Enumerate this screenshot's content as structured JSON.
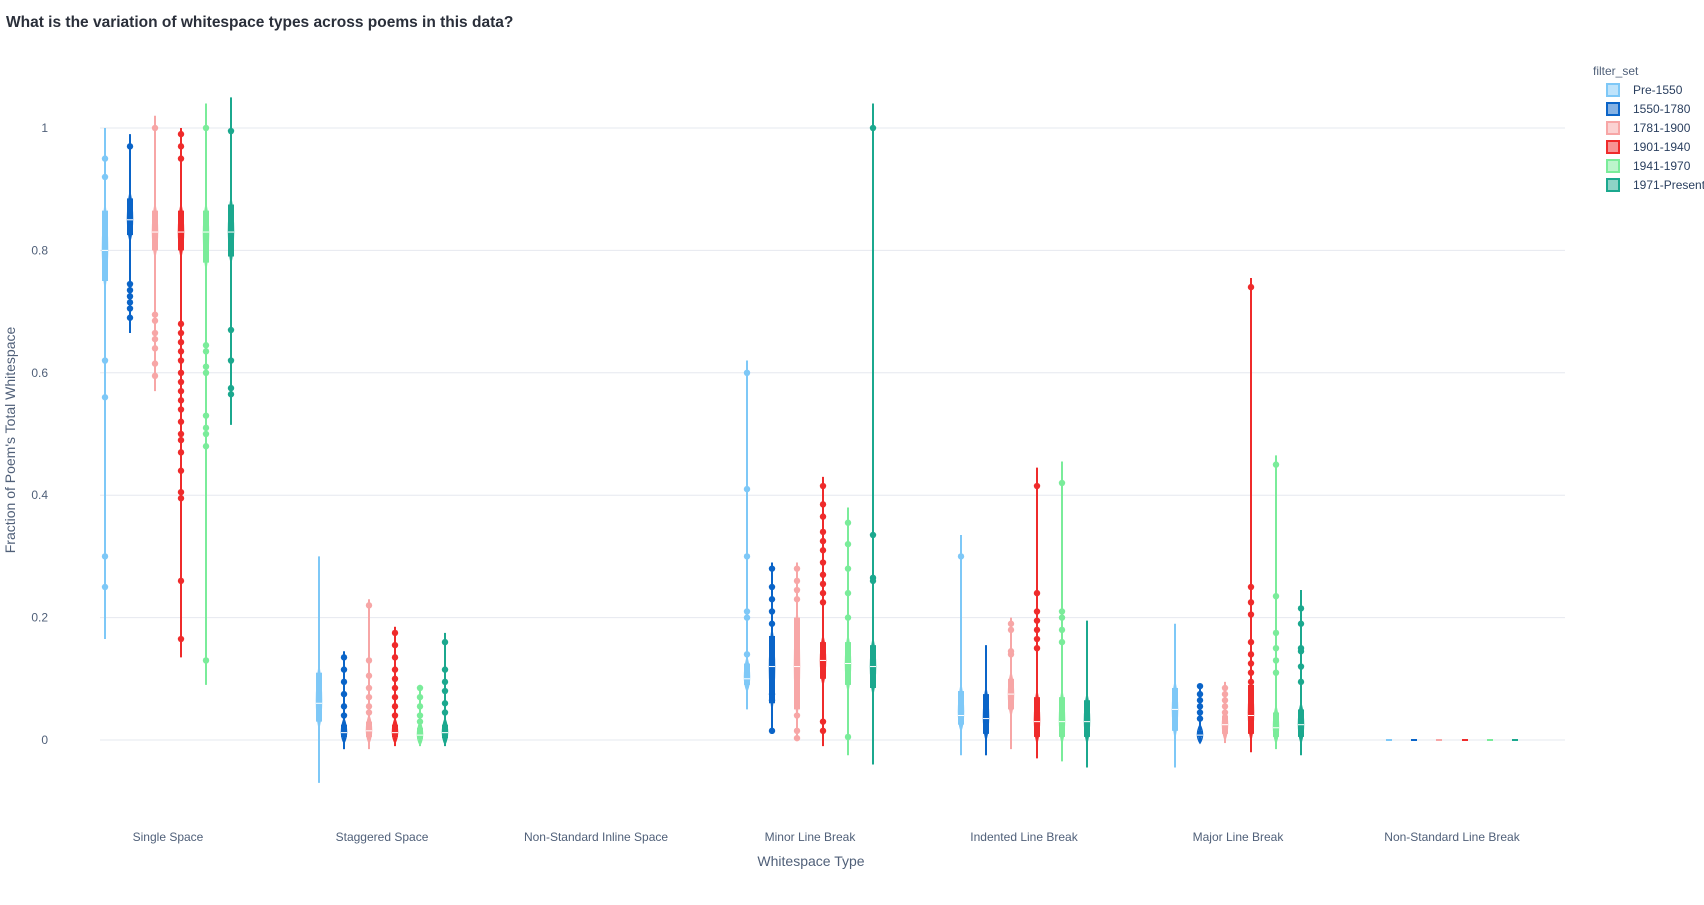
{
  "chart_data": {
    "type": "violin",
    "title": "What is the variation of whitespace types across poems in this data?",
    "xlabel": "Whitespace Type",
    "ylabel": "Fraction of Poem's Total Whitespace",
    "ylim": [
      -0.12,
      1.08
    ],
    "yticks": [
      0,
      0.2,
      0.4,
      0.6,
      0.8,
      1
    ],
    "ytick_labels": [
      "0",
      "0.2",
      "0.4",
      "0.6",
      "0.8",
      "1"
    ],
    "grid": true,
    "legend": {
      "title": "filter_set",
      "position": "top-right"
    },
    "categories": [
      "Single Space",
      "Staggered Space",
      "Non-Standard Inline Space",
      "Minor Line Break",
      "Indented Line Break",
      "Major Line Break",
      "Non-Standard Line Break"
    ],
    "series": [
      {
        "name": "Pre-1550",
        "color": "#7ec8f7",
        "stats": [
          {
            "min": 0.165,
            "max": 1.0,
            "q1": 0.75,
            "q3": 0.865,
            "median": 0.8,
            "points": [
              0.56,
              0.3,
              0.25,
              0.62,
              0.92,
              0.95
            ]
          },
          {
            "min": -0.07,
            "max": 0.3,
            "q1": 0.03,
            "q3": 0.11,
            "median": 0.06,
            "points": []
          },
          null,
          {
            "min": 0.05,
            "max": 0.62,
            "q1": 0.09,
            "q3": 0.125,
            "median": 0.1,
            "points": [
              0.6,
              0.41,
              0.3,
              0.21,
              0.2,
              0.14
            ]
          },
          {
            "min": -0.025,
            "max": 0.335,
            "q1": 0.025,
            "q3": 0.08,
            "median": 0.04,
            "points": [
              0.3
            ]
          },
          {
            "min": -0.045,
            "max": 0.19,
            "q1": 0.015,
            "q3": 0.085,
            "median": 0.05,
            "points": []
          },
          {
            "min": 0,
            "max": 0,
            "q1": 0,
            "q3": 0,
            "median": 0,
            "points": []
          }
        ]
      },
      {
        "name": "1550-1780",
        "color": "#0a64c8",
        "stats": [
          {
            "min": 0.665,
            "max": 0.99,
            "q1": 0.825,
            "q3": 0.885,
            "median": 0.85,
            "points": [
              0.97,
              0.745,
              0.735,
              0.725,
              0.715,
              0.705,
              0.69
            ]
          },
          {
            "min": -0.015,
            "max": 0.145,
            "q1": 0.005,
            "q3": 0.025,
            "median": 0.012,
            "points": [
              0.135,
              0.115,
              0.095,
              0.075,
              0.055,
              0.04
            ]
          },
          null,
          {
            "min": 0.01,
            "max": 0.29,
            "q1": 0.06,
            "q3": 0.17,
            "median": 0.12,
            "points": [
              0.28,
              0.25,
              0.23,
              0.21,
              0.19,
              0.075,
              0.065,
              0.015
            ]
          },
          {
            "min": -0.025,
            "max": 0.155,
            "q1": 0.01,
            "q3": 0.075,
            "median": 0.035,
            "points": []
          },
          {
            "min": -0.005,
            "max": 0.09,
            "q1": 0.005,
            "q3": 0.015,
            "median": 0.008,
            "points": [
              0.088,
              0.075,
              0.065,
              0.055,
              0.045,
              0.035
            ]
          },
          {
            "min": 0,
            "max": 0,
            "q1": 0,
            "q3": 0,
            "median": 0,
            "points": []
          }
        ]
      },
      {
        "name": "1781-1900",
        "color": "#f7a6a6",
        "stats": [
          {
            "min": 0.57,
            "max": 1.02,
            "q1": 0.8,
            "q3": 0.865,
            "median": 0.83,
            "points": [
              1.0,
              0.695,
              0.685,
              0.665,
              0.655,
              0.64,
              0.615,
              0.595
            ]
          },
          {
            "min": -0.015,
            "max": 0.23,
            "q1": 0.005,
            "q3": 0.03,
            "median": 0.015,
            "points": [
              0.22,
              0.13,
              0.105,
              0.085,
              0.07,
              0.055,
              0.045
            ]
          },
          null,
          {
            "min": 0.0,
            "max": 0.29,
            "q1": 0.05,
            "q3": 0.2,
            "median": 0.12,
            "points": [
              0.28,
              0.26,
              0.245,
              0.23,
              0.04,
              0.015,
              0.003
            ]
          },
          {
            "min": -0.015,
            "max": 0.2,
            "q1": 0.05,
            "q3": 0.1,
            "median": 0.075,
            "points": [
              0.19,
              0.18,
              0.145,
              0.14
            ]
          },
          {
            "min": -0.005,
            "max": 0.095,
            "q1": 0.01,
            "q3": 0.04,
            "median": 0.025,
            "points": [
              0.085,
              0.075,
              0.065,
              0.055,
              0.045
            ]
          },
          {
            "min": 0,
            "max": 0,
            "q1": 0,
            "q3": 0,
            "median": 0,
            "points": []
          }
        ]
      },
      {
        "name": "1901-1940",
        "color": "#ef2b2b",
        "stats": [
          {
            "min": 0.135,
            "max": 1.0,
            "q1": 0.8,
            "q3": 0.865,
            "median": 0.83,
            "points": [
              0.99,
              0.97,
              0.95,
              0.68,
              0.665,
              0.65,
              0.635,
              0.62,
              0.6,
              0.585,
              0.57,
              0.555,
              0.54,
              0.52,
              0.5,
              0.49,
              0.47,
              0.44,
              0.405,
              0.395,
              0.26,
              0.165
            ]
          },
          {
            "min": -0.01,
            "max": 0.185,
            "q1": 0.005,
            "q3": 0.025,
            "median": 0.012,
            "points": [
              0.175,
              0.155,
              0.135,
              0.115,
              0.1,
              0.085,
              0.07,
              0.055,
              0.04
            ]
          },
          null,
          {
            "min": -0.01,
            "max": 0.43,
            "q1": 0.1,
            "q3": 0.16,
            "median": 0.13,
            "points": [
              0.415,
              0.385,
              0.365,
              0.34,
              0.325,
              0.31,
              0.29,
              0.27,
              0.255,
              0.24,
              0.225,
              0.03,
              0.015
            ]
          },
          {
            "min": -0.03,
            "max": 0.445,
            "q1": 0.005,
            "q3": 0.07,
            "median": 0.03,
            "points": [
              0.415,
              0.24,
              0.21,
              0.195,
              0.18,
              0.165,
              0.15
            ]
          },
          {
            "min": -0.02,
            "max": 0.755,
            "q1": 0.01,
            "q3": 0.09,
            "median": 0.04,
            "points": [
              0.74,
              0.25,
              0.225,
              0.205,
              0.16,
              0.14,
              0.125,
              0.11,
              0.095
            ]
          },
          {
            "min": 0,
            "max": 0,
            "q1": 0,
            "q3": 0,
            "median": 0,
            "points": []
          }
        ]
      },
      {
        "name": "1941-1970",
        "color": "#7aec9a",
        "stats": [
          {
            "min": 0.09,
            "max": 1.04,
            "q1": 0.78,
            "q3": 0.865,
            "median": 0.83,
            "points": [
              1.0,
              0.645,
              0.635,
              0.61,
              0.6,
              0.53,
              0.51,
              0.5,
              0.48,
              0.13
            ]
          },
          {
            "min": -0.01,
            "max": 0.09,
            "q1": 0.002,
            "q3": 0.02,
            "median": 0.008,
            "points": [
              0.085,
              0.07,
              0.055,
              0.04,
              0.03
            ]
          },
          null,
          {
            "min": -0.025,
            "max": 0.38,
            "q1": 0.09,
            "q3": 0.16,
            "median": 0.125,
            "points": [
              0.355,
              0.32,
              0.28,
              0.24,
              0.2,
              0.005
            ]
          },
          {
            "min": -0.035,
            "max": 0.455,
            "q1": 0.005,
            "q3": 0.07,
            "median": 0.03,
            "points": [
              0.42,
              0.21,
              0.2,
              0.18,
              0.16
            ]
          },
          {
            "min": -0.015,
            "max": 0.465,
            "q1": 0.005,
            "q3": 0.045,
            "median": 0.02,
            "points": [
              0.45,
              0.235,
              0.175,
              0.15,
              0.13,
              0.11
            ]
          },
          {
            "min": 0,
            "max": 0,
            "q1": 0,
            "q3": 0,
            "median": 0,
            "points": []
          }
        ]
      },
      {
        "name": "1971-Present",
        "color": "#1ba88e",
        "stats": [
          {
            "min": 0.515,
            "max": 1.05,
            "q1": 0.79,
            "q3": 0.875,
            "median": 0.83,
            "points": [
              0.995,
              0.67,
              0.62,
              0.575,
              0.565
            ]
          },
          {
            "min": -0.01,
            "max": 0.175,
            "q1": 0.003,
            "q3": 0.025,
            "median": 0.012,
            "points": [
              0.16,
              0.115,
              0.095,
              0.08,
              0.06,
              0.045
            ]
          },
          null,
          {
            "min": -0.04,
            "max": 1.04,
            "q1": 0.085,
            "q3": 0.155,
            "median": 0.12,
            "points": [
              1.0,
              0.335,
              0.265,
              0.26
            ]
          },
          {
            "min": -0.045,
            "max": 0.195,
            "q1": 0.005,
            "q3": 0.065,
            "median": 0.03,
            "points": []
          },
          {
            "min": -0.025,
            "max": 0.245,
            "q1": 0.005,
            "q3": 0.05,
            "median": 0.025,
            "points": [
              0.215,
              0.19,
              0.15,
              0.145,
              0.12,
              0.095
            ]
          },
          {
            "min": 0,
            "max": 0,
            "q1": 0,
            "q3": 0,
            "median": 0,
            "points": []
          }
        ]
      }
    ]
  }
}
